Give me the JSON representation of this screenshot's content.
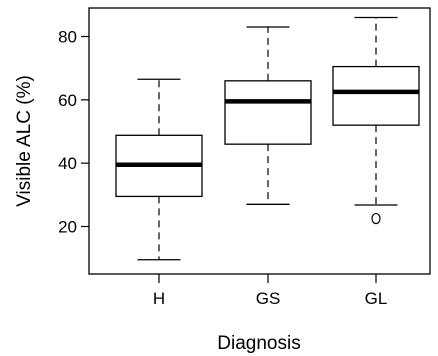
{
  "chart_data": {
    "type": "box",
    "xlabel": "Diagnosis",
    "ylabel": "Visible ALC (%)",
    "ylim": [
      5,
      89
    ],
    "yticks": [
      20,
      40,
      60,
      80
    ],
    "categories": [
      "H",
      "GS",
      "GL"
    ],
    "boxes": [
      {
        "category": "H",
        "whisker_low": 9.5,
        "q1": 29.5,
        "median": 39.5,
        "q3": 48.8,
        "whisker_high": 66.5,
        "outliers": []
      },
      {
        "category": "GS",
        "whisker_low": 27.0,
        "q1": 46.0,
        "median": 59.5,
        "q3": 66.0,
        "whisker_high": 83.0,
        "outliers": []
      },
      {
        "category": "GL",
        "whisker_low": 26.8,
        "q1": 52.0,
        "median": 62.5,
        "q3": 70.5,
        "whisker_high": 86.0,
        "outliers": [
          22.5
        ]
      }
    ],
    "grid": false,
    "style": {
      "box_fill": "#ffffff",
      "stroke": "#000000"
    }
  }
}
